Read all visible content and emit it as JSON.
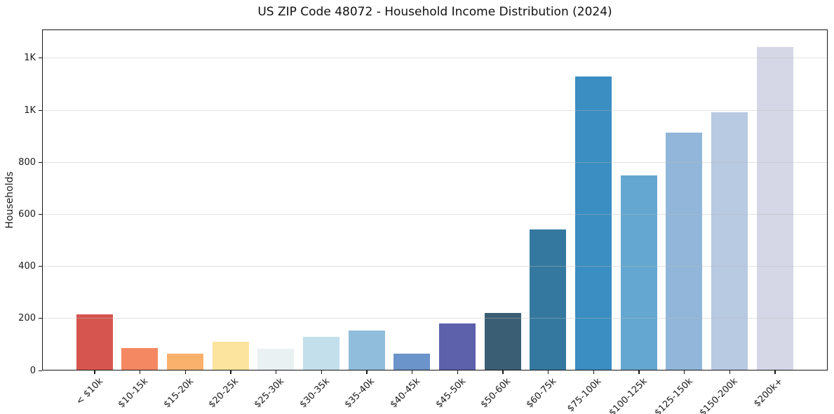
{
  "chart_data": {
    "type": "bar",
    "title": "US ZIP Code 48072 - Household Income Distribution (2024)",
    "xlabel": "",
    "ylabel": "Households",
    "categories": [
      "< $10k",
      "$10-15k",
      "$15-20k",
      "$20-25k",
      "$25-30k",
      "$30-35k",
      "$35-40k",
      "$40-45k",
      "$45-50k",
      "$50-60k",
      "$60-75k",
      "$75-100k",
      "$100-125k",
      "$125-150k",
      "$150-200k",
      "$200k+"
    ],
    "values": [
      212,
      83,
      63,
      108,
      81,
      126,
      151,
      63,
      178,
      218,
      538,
      1126,
      746,
      912,
      990,
      1241
    ],
    "bar_colors": [
      "#d6564f",
      "#f48862",
      "#f9b16c",
      "#fce49e",
      "#e9f1f3",
      "#c3dfec",
      "#90bddc",
      "#6a94ca",
      "#5d60aa",
      "#3a5f74",
      "#35789f",
      "#3a8ec2",
      "#64a7d0",
      "#91b6da",
      "#b8c9e2",
      "#d5d7e6"
    ],
    "ylim": [
      0,
      1310
    ],
    "yticks": [
      {
        "value": 0,
        "label": "0"
      },
      {
        "value": 200,
        "label": "200"
      },
      {
        "value": 400,
        "label": "400"
      },
      {
        "value": 600,
        "label": "600"
      },
      {
        "value": 800,
        "label": "800"
      },
      {
        "value": 1000,
        "label": "1K"
      },
      {
        "value": 1200,
        "label": "1K"
      }
    ],
    "grid": "horizontal-light",
    "legend": "none",
    "background": "#ffffff",
    "x_tick_rotation_deg": 45
  }
}
